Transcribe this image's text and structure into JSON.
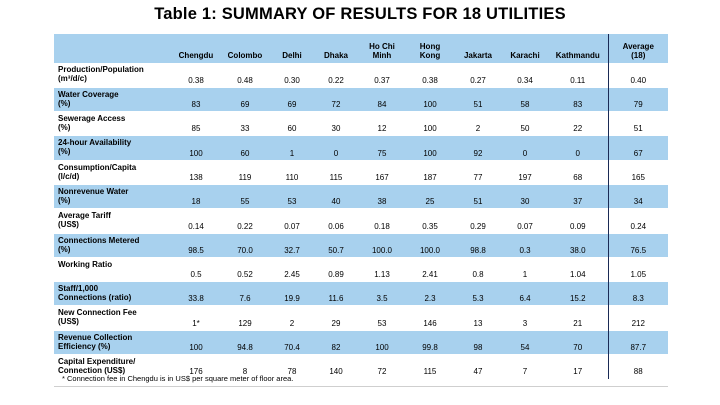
{
  "title": "Table 1: SUMMARY OF RESULTS FOR 18 UTILITIES",
  "headers": [
    "",
    "Chengdu",
    "Colombo",
    "Delhi",
    "Dhaka",
    "Ho Chi\nMinh",
    "Hong\nKong",
    "Jakarta",
    "Karachi",
    "Kathmandu",
    "Average\n(18)"
  ],
  "rows": [
    {
      "label": "Production/Population\n(m³/d/c)",
      "values": [
        "0.38",
        "0.48",
        "0.30",
        "0.22",
        "0.37",
        "0.38",
        "0.27",
        "0.34",
        "0.11",
        "0.40"
      ]
    },
    {
      "label": "Water Coverage\n(%)",
      "values": [
        "83",
        "69",
        "69",
        "72",
        "84",
        "100",
        "51",
        "58",
        "83",
        "79"
      ]
    },
    {
      "label": "Sewerage Access\n(%)",
      "values": [
        "85",
        "33",
        "60",
        "30",
        "12",
        "100",
        "2",
        "50",
        "22",
        "51"
      ]
    },
    {
      "label": "24-hour Availability\n(%)",
      "values": [
        "100",
        "60",
        "1",
        "0",
        "75",
        "100",
        "92",
        "0",
        "0",
        "67"
      ]
    },
    {
      "label": "Consumption/Capita\n(l/c/d)",
      "values": [
        "138",
        "119",
        "110",
        "115",
        "167",
        "187",
        "77",
        "197",
        "68",
        "165"
      ]
    },
    {
      "label": "Nonrevenue Water\n(%)",
      "values": [
        "18",
        "55",
        "53",
        "40",
        "38",
        "25",
        "51",
        "30",
        "37",
        "34"
      ]
    },
    {
      "label": "Average Tariff\n(US$)",
      "values": [
        "0.14",
        "0.22",
        "0.07",
        "0.06",
        "0.18",
        "0.35",
        "0.29",
        "0.07",
        "0.09",
        "0.24"
      ]
    },
    {
      "label": "Connections Metered\n(%)",
      "values": [
        "98.5",
        "70.0",
        "32.7",
        "50.7",
        "100.0",
        "100.0",
        "98.8",
        "0.3",
        "38.0",
        "76.5"
      ]
    },
    {
      "label": "Working Ratio\n",
      "values": [
        "0.5",
        "0.52",
        "2.45",
        "0.89",
        "1.13",
        "2.41",
        "0.8",
        "1",
        "1.04",
        "1.05"
      ]
    },
    {
      "label": "Staff/1,000\nConnections (ratio)",
      "values": [
        "33.8",
        "7.6",
        "19.9",
        "11.6",
        "3.5",
        "2.3",
        "5.3",
        "6.4",
        "15.2",
        "8.3"
      ]
    },
    {
      "label": "New Connection Fee\n(US$)",
      "values": [
        "1*",
        "129",
        "2",
        "29",
        "53",
        "146",
        "13",
        "3",
        "21",
        "212"
      ]
    },
    {
      "label": "Revenue Collection\nEfficiency (%)",
      "values": [
        "100",
        "94.8",
        "70.4",
        "82",
        "100",
        "99.8",
        "98",
        "54",
        "70",
        "87.7"
      ]
    },
    {
      "label": "Capital Expenditure/\nConnection (US$)",
      "values": [
        "176",
        "8",
        "78",
        "140",
        "72",
        "115",
        "47",
        "7",
        "17",
        "88"
      ]
    }
  ],
  "footnote": "* Connection fee in Chengdu is in US$ per square meter of floor area."
}
